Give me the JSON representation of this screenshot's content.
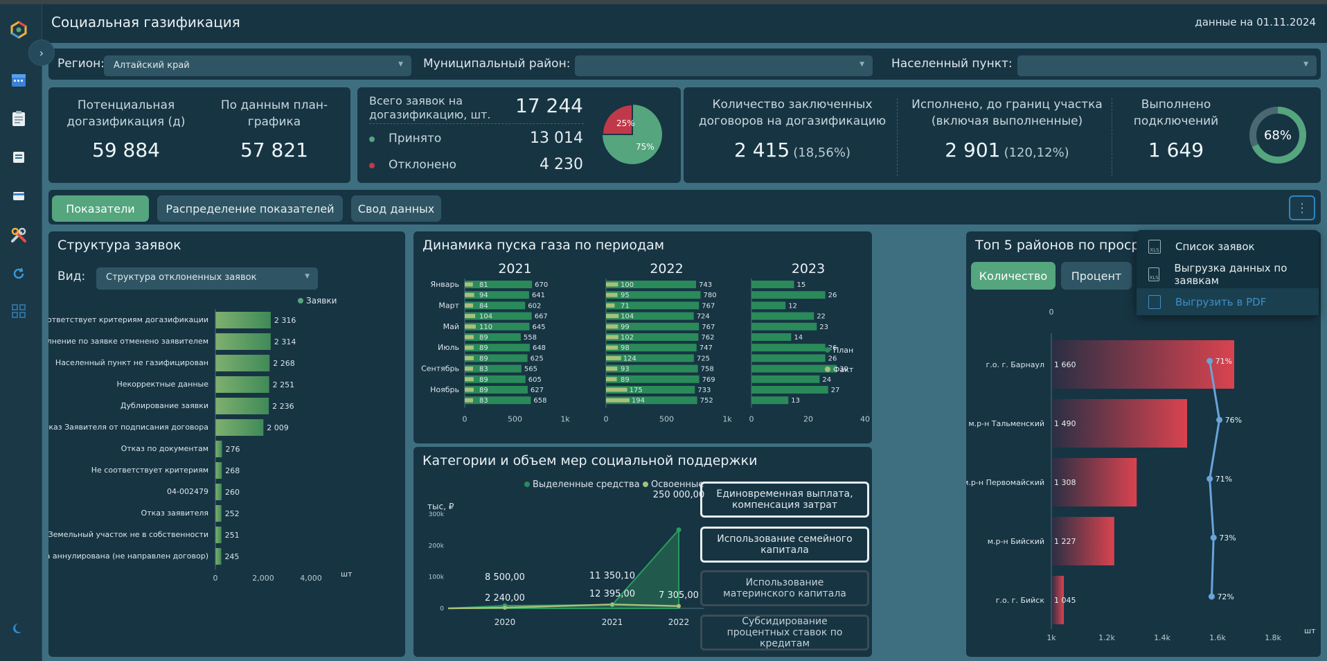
{
  "app": {
    "title": "Социальная газификация",
    "date_label": "данные на 01.11.2024"
  },
  "filters": {
    "region_label": "Регион:",
    "region_value": "Алтайский край",
    "district_label": "Муниципальный район:",
    "district_value": "",
    "settlement_label": "Населенный пункт:",
    "settlement_value": ""
  },
  "kpi1": {
    "potential_label": "Потенциальная догазификация (д)",
    "potential_value": "59 884",
    "plan_label": "По данным план-графика",
    "plan_value": "57 821"
  },
  "kpi2": {
    "total_label": "Всего заявок на догазификацию, шт.",
    "total_value": "17 244",
    "accepted_label": "Принято",
    "accepted_value": "13 014",
    "rejected_label": "Отклонено",
    "rejected_value": "4 230",
    "pie_rejected_label": "25%",
    "pie_accepted_label": "75%",
    "pie_rejected_fraction": 0.25,
    "accepted_color": "#55a57e",
    "rejected_color": "#c0394a"
  },
  "kpi3": {
    "contracts_label": "Количество заключенных договоров на догазификацию",
    "contracts_value": "2 415",
    "contracts_pct": "(18,56%)",
    "done_border_label": "Исполнено, до границ участка (включая выполненные)",
    "done_border_value": "2 901",
    "done_border_pct": "(120,12%)",
    "connections_label": "Выполнено подключений",
    "connections_value": "1 649",
    "donut_label": "68%",
    "donut_fraction": 0.68
  },
  "tabs": [
    "Показатели",
    "Распределение показателей",
    "Свод данных"
  ],
  "menu": {
    "items": [
      "Список заявок",
      "Выгрузка данных по заявкам",
      "Выгрузить в PDF"
    ],
    "icon_text": "XLS"
  },
  "structure": {
    "title": "Структура заявок",
    "view_label": "Вид:",
    "view_value": "Структура отклоненных заявок",
    "unit": "шт"
  },
  "dynamics": {
    "title": "Динамика пуска газа по периодам"
  },
  "support": {
    "title": "Категории и объем мер социальной поддержки",
    "unit": "тыс, ₽",
    "categories": [
      "Единовременная выплата, компенсация затрат",
      "Использование семейного капитала",
      "Использование материнского капитала",
      "Субсидирование процентных ставок по кредитам"
    ]
  },
  "top5": {
    "title": "Топ 5 районов по просро",
    "btn_count": "Количество",
    "btn_percent": "Процент",
    "zero_label": "0",
    "pct_unit": "%",
    "unit": "шт"
  },
  "chart_data": [
    {
      "type": "bar",
      "orientation": "horizontal",
      "legend": [
        "Заявки"
      ],
      "categories": [
        "Не соответствует критериям догазификации",
        "Исполнение по заявке отменено заявителем",
        "Населенный пункт не газифицирован",
        "Некорректные данные",
        "Дублирование заявки",
        "Отмена: отказ Заявителя от подписания договора",
        "Отказ по документам",
        "Не соответствует критериям",
        "04-002479",
        "Отказ заявителя",
        "Земельный участок не в собственности",
        "Заявка аннулирована (не направлен договор)"
      ],
      "values": [
        2316,
        2314,
        2268,
        2251,
        2236,
        2009,
        276,
        268,
        260,
        252,
        251,
        245
      ],
      "value_labels": [
        "2 316",
        "2 314",
        "2 268",
        "2 251",
        "2 236",
        "2 009",
        "276",
        "268",
        "260",
        "252",
        "251",
        "245"
      ],
      "xlim": [
        0,
        4000
      ],
      "xticks": [
        "0",
        "2,000",
        "4,000"
      ],
      "color": "#6ea86a"
    },
    {
      "type": "bar",
      "orientation": "horizontal",
      "legend": [
        "План",
        "Факт"
      ],
      "months": [
        "Январь",
        "",
        "Март",
        "",
        "Май",
        "",
        "Июль",
        "",
        "Сентябрь",
        "",
        "Ноябрь",
        ""
      ],
      "panels": [
        {
          "year": "2021",
          "plan": [
            670,
            641,
            602,
            667,
            645,
            558,
            648,
            625,
            565,
            605,
            627,
            658
          ],
          "fact": [
            81,
            94,
            84,
            104,
            110,
            89,
            89,
            89,
            83,
            89,
            89,
            83
          ],
          "xlim": [
            0,
            1000
          ],
          "xticks": [
            "0",
            "500",
            "1k"
          ]
        },
        {
          "year": "2022",
          "plan": [
            743,
            780,
            767,
            724,
            767,
            762,
            747,
            725,
            758,
            769,
            733,
            752
          ],
          "fact": [
            100,
            95,
            71,
            104,
            99,
            102,
            98,
            124,
            93,
            89,
            175,
            194
          ],
          "xlim": [
            0,
            1000
          ],
          "xticks": [
            "0",
            "500",
            "1k"
          ]
        },
        {
          "year": "2023",
          "plan": [
            15,
            26,
            12,
            22,
            23,
            14,
            26,
            26,
            30,
            24,
            27,
            13
          ],
          "fact": [],
          "xlim": [
            0,
            40
          ],
          "xticks": [
            "0",
            "20",
            "40"
          ]
        }
      ]
    },
    {
      "type": "area",
      "legend": [
        "Выделенные средства",
        "Освоенные средства"
      ],
      "x": [
        "2020",
        "2021",
        "2022"
      ],
      "series": [
        {
          "name": "Выделенные средства",
          "values": [
            8500,
            11350.1,
            250000
          ],
          "labels": [
            "8 500,00",
            "11 350,10",
            "250 000,00"
          ]
        },
        {
          "name": "Освоенные средства",
          "values": [
            2240,
            12395,
            7305
          ],
          "labels": [
            "2 240,00",
            "12 395,00",
            "7 305,00"
          ]
        }
      ],
      "ylim": [
        0,
        300000
      ],
      "yticks": [
        "0",
        "100k",
        "200k",
        "300k"
      ],
      "ylabel": "тыс, ₽"
    },
    {
      "type": "bar",
      "orientation": "horizontal",
      "categories": [
        "г.о. г. Барнаул",
        "м.р-н Тальменский",
        "м.р-н Первомайский",
        "м.р-н Бийский",
        "г.о. г. Бийск"
      ],
      "values": [
        1660,
        1490,
        1308,
        1227,
        1045
      ],
      "value_labels": [
        "1 660",
        "1 490",
        "1 308",
        "1 227",
        "1 045"
      ],
      "percent": [
        71,
        76,
        71,
        73,
        72
      ],
      "percent_labels": [
        "71%",
        "76%",
        "71%",
        "73%",
        "72%"
      ],
      "xlim": [
        1000,
        1800
      ],
      "xticks": [
        "1k",
        "1.2k",
        "1.4k",
        "1.6k",
        "1.8k"
      ],
      "color": "#d9434f"
    }
  ]
}
